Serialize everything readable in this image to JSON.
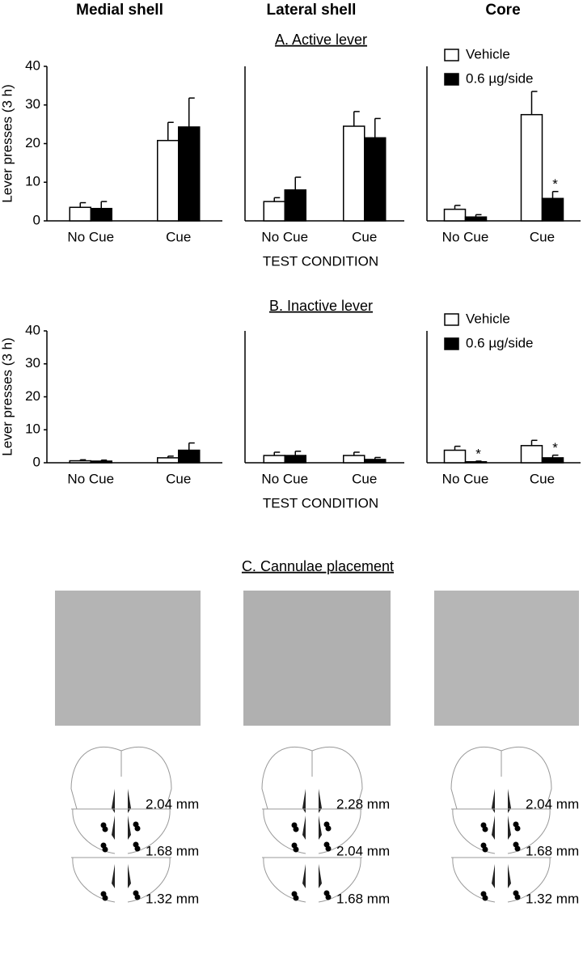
{
  "column_titles": [
    "Medial shell",
    "Lateral shell",
    "Core"
  ],
  "panel_titles": [
    "A. Active lever",
    "B. Inactive lever",
    "C. Cannulae placement"
  ],
  "chart_data": [
    {
      "type": "bar",
      "ylabel": "Lever presses (3 h)",
      "categories": [
        "No Cue",
        "Cue"
      ],
      "ylim": [
        0,
        40
      ],
      "yticks": [
        0,
        10,
        20,
        30,
        40
      ],
      "series": [
        {
          "color": "#ffffff",
          "values": [
            3.5,
            20.8
          ],
          "errors": [
            1.2,
            4.7
          ]
        },
        {
          "color": "#000000",
          "values": [
            3.2,
            24.3
          ],
          "errors": [
            1.8,
            7.5
          ]
        }
      ]
    },
    {
      "type": "bar",
      "xlabel": "TEST CONDITION",
      "categories": [
        "No Cue",
        "Cue"
      ],
      "ylim": [
        0,
        40
      ],
      "series": [
        {
          "color": "#ffffff",
          "values": [
            5,
            24.5
          ],
          "errors": [
            1,
            3.8
          ]
        },
        {
          "color": "#000000",
          "values": [
            8,
            21.5
          ],
          "errors": [
            3.3,
            5
          ]
        }
      ]
    },
    {
      "type": "bar",
      "categories": [
        "No Cue",
        "Cue"
      ],
      "ylim": [
        0,
        40
      ],
      "legend": "upper left",
      "series": [
        {
          "name": "Vehicle",
          "color": "#ffffff",
          "values": [
            3,
            27.5
          ],
          "errors": [
            1,
            6
          ]
        },
        {
          "name": "0.6 µg/side",
          "color": "#000000",
          "values": [
            1,
            5.8
          ],
          "errors": [
            0.6,
            1.8
          ],
          "markers": [
            null,
            "*"
          ]
        }
      ]
    },
    {
      "type": "bar",
      "ylabel": "Lever presses (3 h)",
      "categories": [
        "No Cue",
        "Cue"
      ],
      "ylim": [
        0,
        40
      ],
      "yticks": [
        0,
        10,
        20,
        30,
        40
      ],
      "series": [
        {
          "color": "#ffffff",
          "values": [
            0.6,
            1.5
          ],
          "errors": [
            0.3,
            0.5
          ]
        },
        {
          "color": "#000000",
          "values": [
            0.5,
            3.8
          ],
          "errors": [
            0.3,
            2.2
          ]
        }
      ]
    },
    {
      "type": "bar",
      "xlabel": "TEST CONDITION",
      "categories": [
        "No Cue",
        "Cue"
      ],
      "ylim": [
        0,
        40
      ],
      "series": [
        {
          "color": "#ffffff",
          "values": [
            2.2,
            2.2
          ],
          "errors": [
            1,
            1
          ]
        },
        {
          "color": "#000000",
          "values": [
            2.2,
            1
          ],
          "errors": [
            1.3,
            0.6
          ]
        }
      ]
    },
    {
      "type": "bar",
      "categories": [
        "No Cue",
        "Cue"
      ],
      "ylim": [
        0,
        40
      ],
      "legend": "upper left",
      "series": [
        {
          "name": "Vehicle",
          "color": "#ffffff",
          "values": [
            3.8,
            5.2
          ],
          "errors": [
            1.2,
            1.6
          ]
        },
        {
          "name": "0.6 µg/side",
          "color": "#000000",
          "values": [
            0.3,
            1.5
          ],
          "errors": [
            0.2,
            0.8
          ],
          "markers": [
            "*",
            "*"
          ]
        }
      ]
    }
  ],
  "placement_levels": [
    [
      "2.04 mm",
      "1.68 mm",
      "1.32 mm"
    ],
    [
      "2.28 mm",
      "2.04 mm",
      "1.68 mm"
    ],
    [
      "2.04 mm",
      "1.68 mm",
      "1.32 mm"
    ]
  ]
}
